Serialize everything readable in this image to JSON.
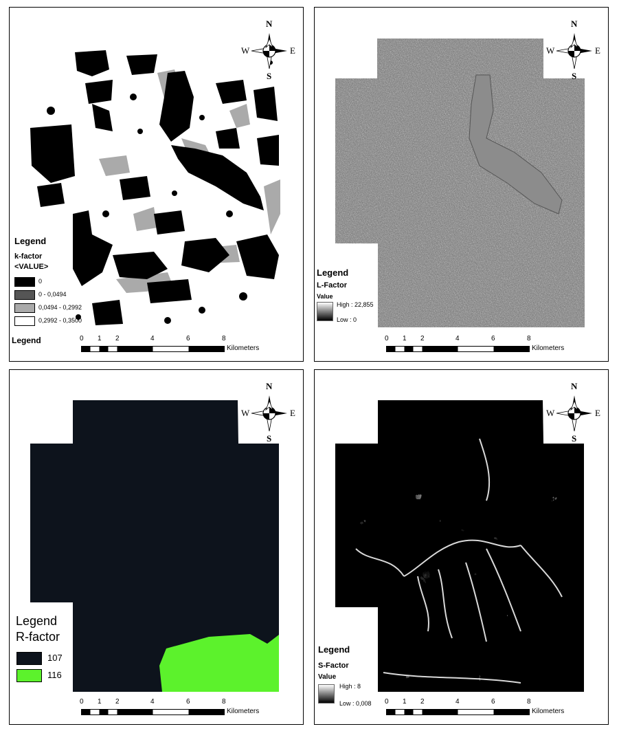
{
  "compass": {
    "n": "N",
    "s": "S",
    "e": "E",
    "w": "W"
  },
  "scalebar": {
    "ticks": [
      "0",
      "1",
      "2",
      "4",
      "6",
      "8"
    ],
    "unit": "Kilometers"
  },
  "panels": {
    "k_factor": {
      "legend_title": "Legend",
      "layer": "k-factor",
      "field": "<VALUE>",
      "classes": [
        {
          "label": "0",
          "color": "#000000"
        },
        {
          "label": "0 - 0,0494",
          "color": "#555555"
        },
        {
          "label": "0,0494 - 0,2992",
          "color": "#aaaaaa"
        },
        {
          "label": "0,2992 - 0,3500",
          "color": "#ffffff"
        }
      ],
      "bottom_legend": "Legend"
    },
    "l_factor": {
      "legend_title": "Legend",
      "layer": "L-Factor",
      "field": "Value",
      "high": "High : 22,855",
      "low": "Low : 0"
    },
    "r_factor": {
      "legend_title": "Legend",
      "layer": "R-factor",
      "classes": [
        {
          "label": "107",
          "color": "#0d131c"
        },
        {
          "label": "116",
          "color": "#5cf22c"
        }
      ]
    },
    "s_factor": {
      "legend_title": "Legend",
      "layer": "S-Factor",
      "field": "Value",
      "high": "High : 8",
      "low": "Low : 0,008"
    }
  }
}
